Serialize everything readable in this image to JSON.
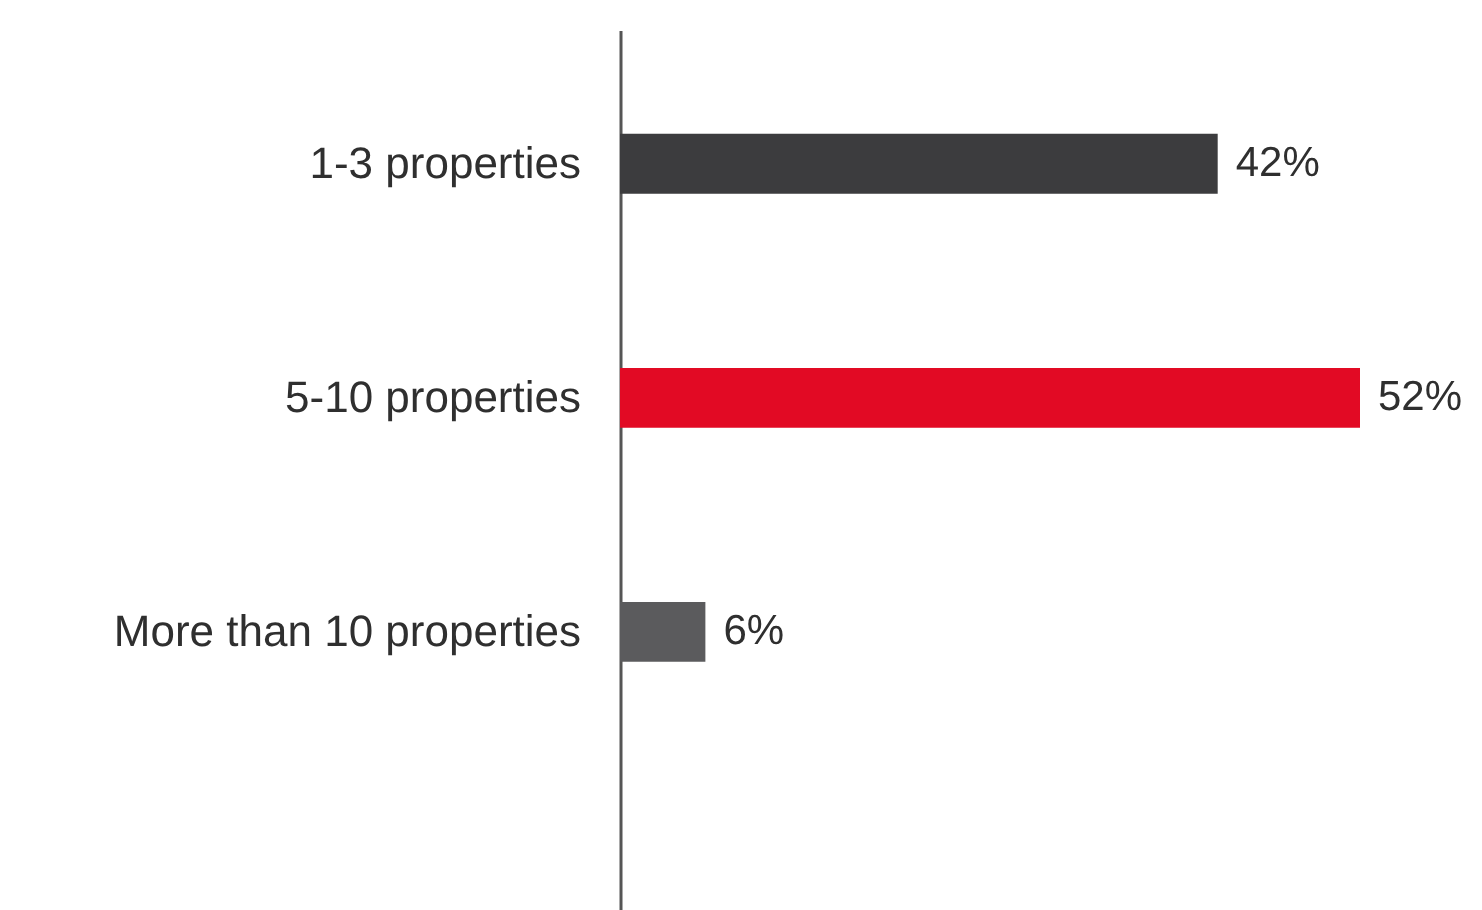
{
  "chart_data": {
    "type": "bar",
    "orientation": "horizontal",
    "categories": [
      "1-3 properties",
      "5-10 properties",
      "More than 10 properties"
    ],
    "values": [
      42,
      52,
      6
    ],
    "colors": [
      "#3c3c3e",
      "#e20a24",
      "#5b5b5d"
    ],
    "value_labels": [
      "42%",
      "52%",
      "6%"
    ]
  }
}
